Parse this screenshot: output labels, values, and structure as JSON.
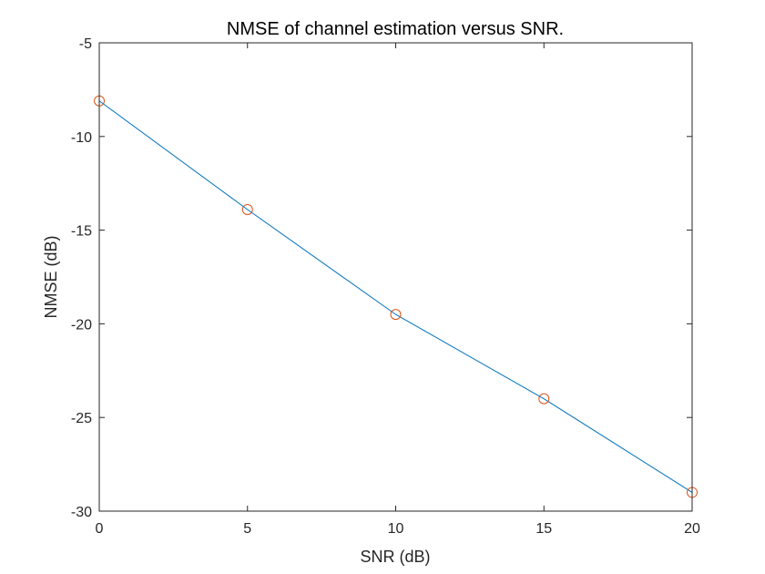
{
  "chart_data": {
    "type": "line",
    "title": "NMSE of channel estimation versus SNR.",
    "xlabel": "SNR (dB)",
    "ylabel": "NMSE (dB)",
    "xlim": [
      0,
      20
    ],
    "ylim": [
      -30,
      -5
    ],
    "xticks": [
      0,
      5,
      10,
      15,
      20
    ],
    "yticks": [
      -5,
      -10,
      -15,
      -20,
      -25,
      -30
    ],
    "grid": false,
    "legend": "none",
    "series": [
      {
        "x": [
          0,
          5,
          10,
          15,
          20
        ],
        "y": [
          -8.1,
          -13.9,
          -19.5,
          -24.0,
          -29.0
        ],
        "line_color": "#0072BD",
        "marker": "circle",
        "marker_color": "#D95319"
      }
    ]
  }
}
